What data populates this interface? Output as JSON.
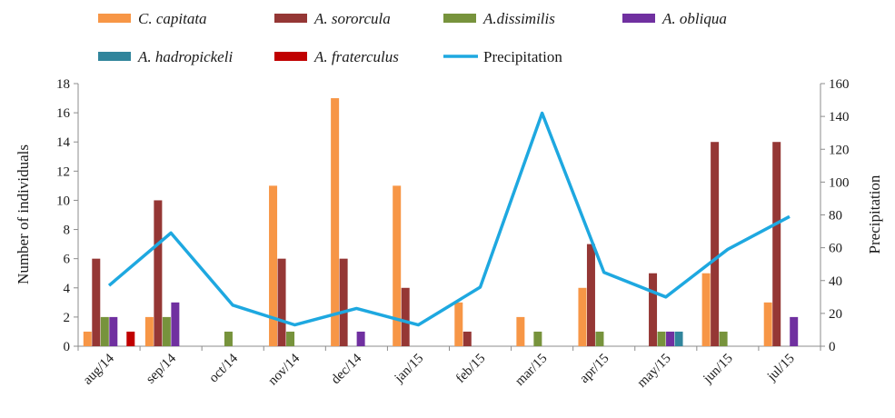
{
  "chart_data": {
    "type": "bar+line",
    "categories": [
      "aug/14",
      "sep/14",
      "oct/14",
      "nov/14",
      "dec/14",
      "jan/15",
      "feb/15",
      "mar/15",
      "apr/15",
      "may/15",
      "jun/15",
      "jul/15"
    ],
    "series": [
      {
        "name": "C. capitata",
        "axis": "left",
        "type": "bar",
        "color": "#f79646",
        "values": [
          1,
          2,
          0,
          11,
          17,
          11,
          3,
          2,
          4,
          0,
          5,
          3
        ]
      },
      {
        "name": "A. sororcula",
        "axis": "left",
        "type": "bar",
        "color": "#953735",
        "values": [
          6,
          10,
          0,
          6,
          6,
          4,
          1,
          0,
          7,
          5,
          14,
          14
        ]
      },
      {
        "name": "A.dissimilis",
        "axis": "left",
        "type": "bar",
        "color": "#77933c",
        "values": [
          2,
          2,
          1,
          1,
          0,
          0,
          0,
          1,
          1,
          1,
          1,
          0
        ]
      },
      {
        "name": "A. obliqua",
        "axis": "left",
        "type": "bar",
        "color": "#7030a0",
        "values": [
          2,
          3,
          0,
          0,
          1,
          0,
          0,
          0,
          0,
          1,
          0,
          2
        ]
      },
      {
        "name": "A. hadropickeli",
        "axis": "left",
        "type": "bar",
        "color": "#31859c",
        "values": [
          0,
          0,
          0,
          0,
          0,
          0,
          0,
          0,
          0,
          1,
          0,
          0
        ]
      },
      {
        "name": "A. fraterculus",
        "axis": "left",
        "type": "bar",
        "color": "#c00000",
        "values": [
          1,
          0,
          0,
          0,
          0,
          0,
          0,
          0,
          0,
          0,
          0,
          0
        ]
      },
      {
        "name": "Precipitation",
        "axis": "right",
        "type": "line",
        "color": "#1ea8e0",
        "values": [
          37,
          69,
          25,
          13,
          23,
          13,
          36,
          142,
          45,
          30,
          59,
          79
        ]
      }
    ],
    "legend": {
      "placement": "top",
      "entries": [
        {
          "label": "C. capitata",
          "italic": true
        },
        {
          "label": "A. sororcula",
          "italic": true
        },
        {
          "label": "A.dissimilis",
          "italic": true
        },
        {
          "label": "A. obliqua",
          "italic": true
        },
        {
          "label": "A. hadropickeli",
          "italic": true
        },
        {
          "label": "A. fraterculus",
          "italic": true
        },
        {
          "label": "Precipitation",
          "italic": false
        }
      ]
    },
    "ylabel_left": "Number of individuals",
    "ylabel_right": "Precipitation",
    "ylim_left": [
      0,
      18
    ],
    "yticks_left": [
      "0",
      "2",
      "4",
      "6",
      "8",
      "10",
      "12",
      "14",
      "16",
      "18"
    ],
    "ylim_right": [
      0,
      160
    ],
    "yticks_right": [
      "0",
      "20",
      "40",
      "60",
      "80",
      "100",
      "120",
      "140",
      "160"
    ],
    "grid": false
  }
}
